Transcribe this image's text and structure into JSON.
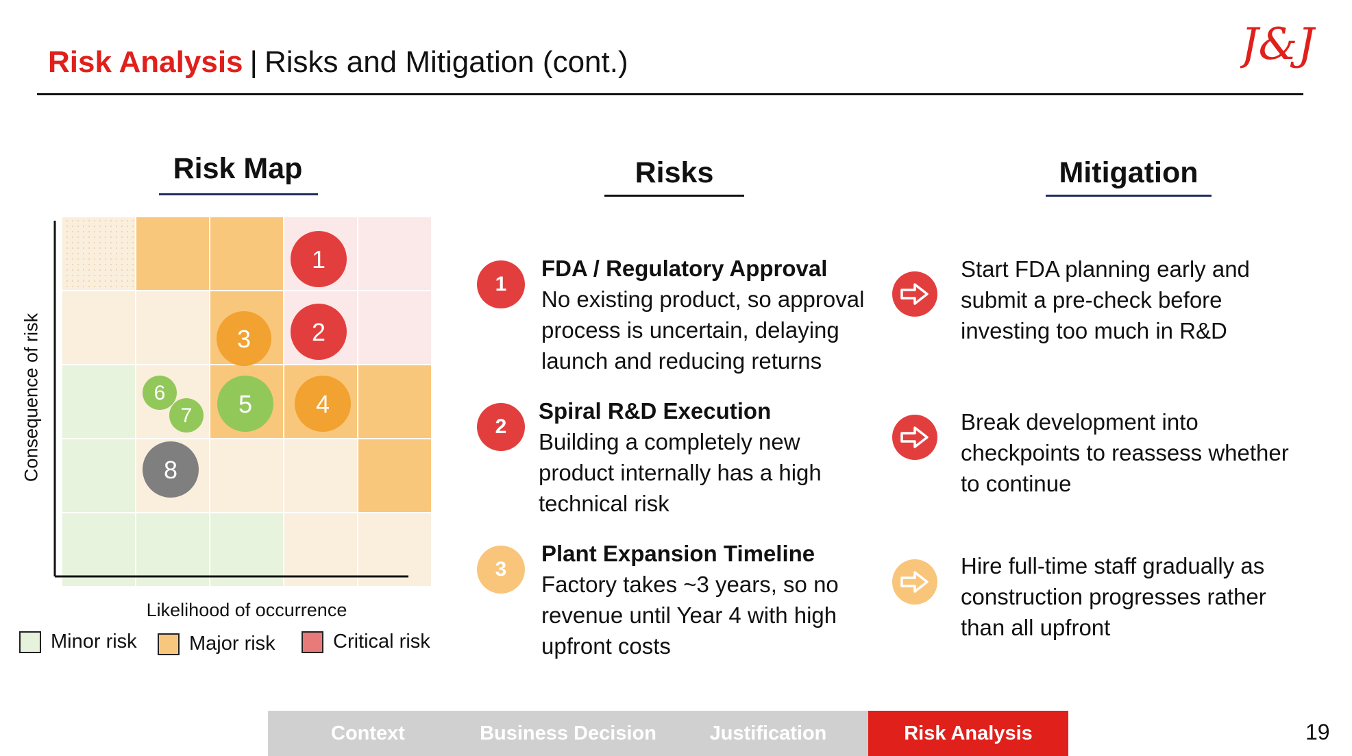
{
  "header": {
    "title_accent": "Risk Analysis",
    "title_sep": "|",
    "title_rest": "Risks and Mitigation (cont.)",
    "logo_text": "J&J",
    "brand_color": "#e0201b"
  },
  "risk_map": {
    "title": "Risk Map",
    "y_label": "Consequence of risk",
    "x_label": "Likelihood of occurrence",
    "bubbles": [
      {
        "label": "1",
        "color": "#e33e3e"
      },
      {
        "label": "2",
        "color": "#e33e3e"
      },
      {
        "label": "3",
        "color": "#f2a230"
      },
      {
        "label": "4",
        "color": "#f2a230"
      },
      {
        "label": "5",
        "color": "#92c85a"
      },
      {
        "label": "6",
        "color": "#92c85a"
      },
      {
        "label": "7",
        "color": "#92c85a"
      },
      {
        "label": "8",
        "color": "#7f7f7f"
      }
    ],
    "legend": [
      {
        "label": "Minor risk",
        "color": "#e6f2dc"
      },
      {
        "label": "Major risk",
        "color": "#f8c77e"
      },
      {
        "label": "Critical risk",
        "color": "#e87a7a"
      }
    ]
  },
  "risks": {
    "title": "Risks",
    "items": [
      {
        "num": "1",
        "color": "#e33e3e",
        "heading": "FDA / Regulatory Approval",
        "lines": [
          "No existing product, so approval",
          "process is uncertain, delaying",
          "launch and reducing returns"
        ]
      },
      {
        "num": "2",
        "color": "#e33e3e",
        "heading": "Spiral R&D Execution",
        "lines": [
          "Building a completely new",
          "product internally has a high",
          "technical risk"
        ]
      },
      {
        "num": "3",
        "color": "#f9c57a",
        "heading": "Plant Expansion Timeline",
        "lines": [
          "Factory takes ~3 years, so no",
          "revenue until Year 4 with high",
          "upfront costs"
        ]
      }
    ]
  },
  "mitigation": {
    "title": "Mitigation",
    "items": [
      {
        "color": "#e33e3e",
        "lines": [
          "Start FDA planning early and",
          "submit a pre-check before",
          "investing too much in R&D"
        ]
      },
      {
        "color": "#e33e3e",
        "lines": [
          "Break development into",
          "checkpoints to reassess whether",
          "to continue"
        ]
      },
      {
        "color": "#f9c57a",
        "lines": [
          "Hire full-time staff gradually as",
          "construction progresses rather",
          "than all upfront"
        ]
      }
    ]
  },
  "nav": {
    "tabs": [
      {
        "label": "Context",
        "active": false
      },
      {
        "label": "Business Decision",
        "active": false
      },
      {
        "label": "Justification",
        "active": false
      },
      {
        "label": "Risk Analysis",
        "active": true
      }
    ]
  },
  "page_number": "19"
}
